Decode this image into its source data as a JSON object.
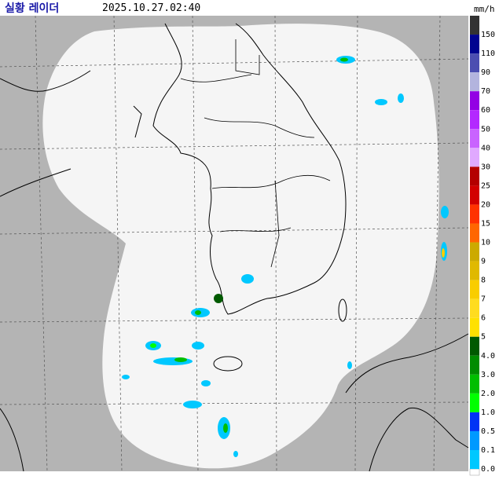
{
  "header": {
    "title": "실황 레이더",
    "timestamp": "2025.10.27.02:40",
    "unit": "mm/h"
  },
  "legend": [
    {
      "label": "150",
      "color": "#333333"
    },
    {
      "label": "110",
      "color": "#000390"
    },
    {
      "label": "90",
      "color": "#4c4eb1"
    },
    {
      "label": "70",
      "color": "#b3b4de"
    },
    {
      "label": "60",
      "color": "#9300e4"
    },
    {
      "label": "50",
      "color": "#b329ff"
    },
    {
      "label": "40",
      "color": "#c963ff"
    },
    {
      "label": "30",
      "color": "#e0a9ff"
    },
    {
      "label": "25",
      "color": "#b40000"
    },
    {
      "label": "20",
      "color": "#d20000"
    },
    {
      "label": "15",
      "color": "#ff3200"
    },
    {
      "label": "10",
      "color": "#ff6600"
    },
    {
      "label": "9",
      "color": "#ccaa00"
    },
    {
      "label": "8",
      "color": "#e0b900"
    },
    {
      "label": "7",
      "color": "#f9cd00"
    },
    {
      "label": "6",
      "color": "#ffdc1f"
    },
    {
      "label": "5",
      "color": "#ffe100"
    },
    {
      "label": "4.0",
      "color": "#005a00"
    },
    {
      "label": "3.0",
      "color": "#008c00"
    },
    {
      "label": "2.0",
      "color": "#00be00"
    },
    {
      "label": "1.0",
      "color": "#00ff00"
    },
    {
      "label": "0.5",
      "color": "#0033f5"
    },
    {
      "label": "0.1",
      "color": "#0099ff"
    },
    {
      "label": "0.0",
      "color": "#00c8ff"
    }
  ]
}
